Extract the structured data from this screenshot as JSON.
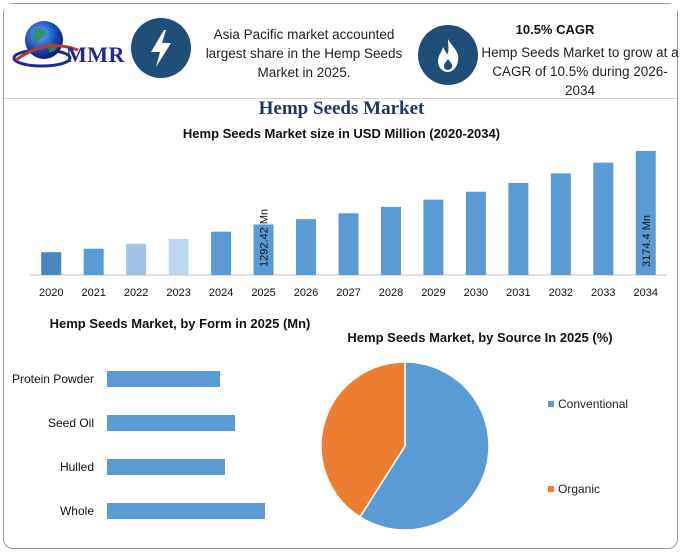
{
  "header": {
    "logo_text": "MMR",
    "highlight_1": "Asia Pacific market accounted largest share in the Hemp Seeds Market in 2025.",
    "highlight_2_title": "10.5% CAGR",
    "highlight_2": "Hemp Seeds Market to grow at a CAGR of 10.5% during 2026-2034",
    "icon_1": "lightning-bolt-icon",
    "icon_2": "flame-icon",
    "colors": {
      "icon_circle": "#1f4e79",
      "bar": "#5b9bd5",
      "organic": "#ed7d31"
    }
  },
  "main_title": "Hemp Seeds Market",
  "chart_data": [
    {
      "type": "bar",
      "title": "Hemp Seeds Market size in USD Million (2020-2034)",
      "categories": [
        "2020",
        "2021",
        "2022",
        "2023",
        "2024",
        "2025",
        "2026",
        "2027",
        "2028",
        "2029",
        "2030",
        "2031",
        "2032",
        "2033",
        "2034"
      ],
      "values": [
        583,
        673,
        798,
        922,
        1108,
        1292.42,
        1428,
        1578,
        1743,
        1926,
        2128,
        2352,
        2599,
        2872,
        3174.4
      ],
      "bar_colors": [
        "#4a86c0",
        "#5b9bd5",
        "#9dc3e6",
        "#bdd7ee",
        "#5b9bd5",
        "#5b9bd5",
        "#5b9bd5",
        "#5b9bd5",
        "#5b9bd5",
        "#5b9bd5",
        "#5b9bd5",
        "#5b9bd5",
        "#5b9bd5",
        "#5b9bd5",
        "#5b9bd5"
      ],
      "data_labels": [
        {
          "category": "2025",
          "text": "1292.42 Mn"
        },
        {
          "category": "2034",
          "text": "3174.4 Mn"
        }
      ],
      "ylim": [
        0,
        3400
      ],
      "grid": false
    },
    {
      "type": "bar",
      "orientation": "horizontal",
      "title": "Hemp Seeds Market, by Form in 2025 (Mn)",
      "categories": [
        "Protein Powder",
        "Seed Oil",
        "Hulled",
        "Whole"
      ],
      "values": [
        113,
        128,
        118,
        158
      ],
      "xlim": [
        0,
        200
      ]
    },
    {
      "type": "pie",
      "title": "Hemp Seeds Market, by Source In 2025 (%)",
      "labels": [
        "Conventional",
        "Organic"
      ],
      "values": [
        59,
        41
      ],
      "colors": [
        "#5b9bd5",
        "#ed7d31"
      ],
      "legend": "right"
    }
  ]
}
